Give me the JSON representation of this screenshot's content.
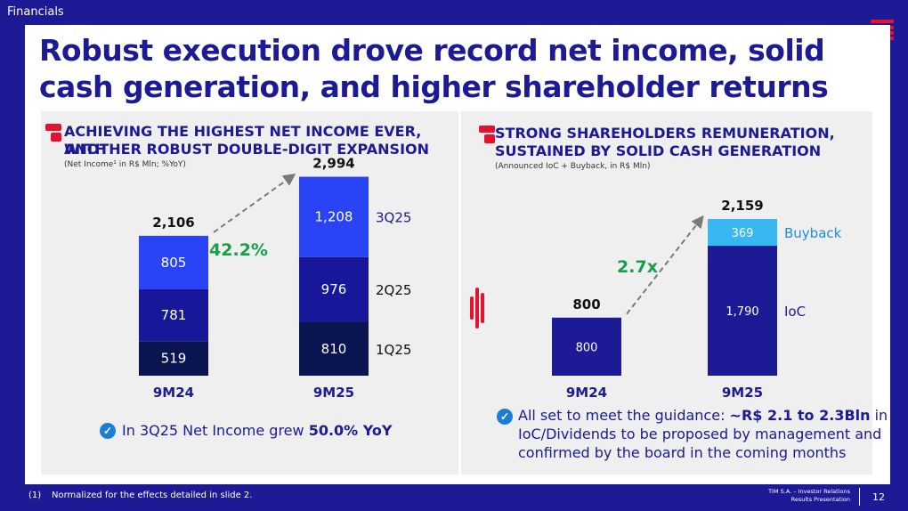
{
  "header": {
    "section": "Financials"
  },
  "title": "Robust execution drove record net income, solid cash generation, and higher shareholder returns",
  "left_panel": {
    "heading_line1": "ACHIEVING THE HIGHEST NET INCOME EVER, WITH",
    "heading_line2": "ANOTHER ROBUST DOUBLE-DIGIT EXPANSION",
    "subtitle": "(Net Income¹ in R$ Mln; %YoY)",
    "note_prefix": "In 3Q25 Net Income grew ",
    "note_bold": "50.0% YoY"
  },
  "right_panel": {
    "heading_line1": "STRONG SHAREHOLDERS REMUNERATION,",
    "heading_line2": "SUSTAINED BY SOLID CASH GENERATION",
    "subtitle": "(Announced IoC + Buyback, in R$ Mln)",
    "note_line1_prefix": "All set to meet the guidance: ",
    "note_line1_bold": "~R$ 2.1 to 2.3Bln",
    "note_line1_suffix": " in",
    "note_line2": "IoC/Dividends to be proposed by management and",
    "note_line3": "confirmed by the board in the coming months"
  },
  "footer": {
    "footnote_number": "(1)",
    "footnote_text": "Normalized for the effects detailed in slide 2.",
    "company": "TIM S.A. – Investor Relations",
    "presentation": "Results Presentation",
    "page": "12"
  },
  "chart_data": [
    {
      "type": "bar",
      "stacked": true,
      "title": "ACHIEVING THE HIGHEST NET INCOME EVER, WITH ANOTHER ROBUST DOUBLE-DIGIT EXPANSION",
      "categories": [
        "9M24",
        "9M25"
      ],
      "series": [
        {
          "name": "1Q25",
          "values": [
            519,
            810
          ],
          "color": "#0a1450"
        },
        {
          "name": "2Q25",
          "values": [
            781,
            976
          ],
          "color": "#18179a"
        },
        {
          "name": "3Q25",
          "values": [
            805,
            1208
          ],
          "color": "#2a44f5"
        }
      ],
      "series_labels": [
        "519",
        "781",
        "805",
        "810",
        "976",
        "1,208"
      ],
      "totals": [
        "2,106",
        "2,994"
      ],
      "growth_label": "42.2%",
      "ylim": [
        0,
        3200
      ]
    },
    {
      "type": "bar",
      "stacked": true,
      "title": "STRONG SHAREHOLDERS REMUNERATION, SUSTAINED BY SOLID CASH GENERATION",
      "categories": [
        "9M24",
        "9M25"
      ],
      "series": [
        {
          "name": "IoC",
          "values": [
            800,
            1790
          ],
          "color": "#1c1a95"
        },
        {
          "name": "Buyback",
          "values": [
            0,
            369
          ],
          "color": "#39b7f2"
        }
      ],
      "series_labels": [
        "800",
        "1,790",
        "369"
      ],
      "totals": [
        "800",
        "2,159"
      ],
      "growth_label": "2.7x",
      "ylim": [
        0,
        2300
      ]
    }
  ]
}
